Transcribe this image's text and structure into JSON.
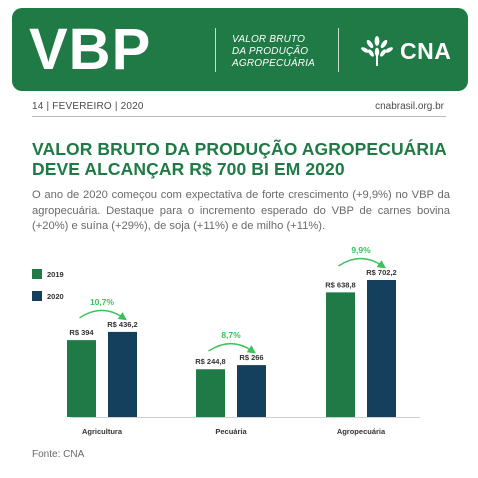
{
  "header": {
    "logo_text": "VBP",
    "subtitle_lines": [
      "VALOR BRUTO",
      "DA PRODUÇÃO",
      "AGROPECUÁRIA"
    ],
    "brand": "CNA",
    "brand_icon": "cna-wheat-logo-icon"
  },
  "meta": {
    "date": "14 | FEVEREIRO | 2020",
    "site": "cnabrasil.org.br"
  },
  "headline": {
    "line1": "VALOR BRUTO DA PRODUÇÃO AGROPECUÁRIA",
    "line2": "DEVE ALCANÇAR R$ 700 BI EM 2020"
  },
  "intro": "O ano de 2020 começou com expectativa de forte crescimento (+9,9%) no VBP da agropecuária. Destaque para o incremento esperado do VBP de carnes bovina (+20%) e suína (+29%), de soja (+11%) e de milho (+11%).",
  "colors": {
    "brand_green": "#1f7a45",
    "series_2019": "#1f7a45",
    "series_2020": "#14405e",
    "growth_label": "#3cc05a"
  },
  "chart_data": {
    "type": "bar",
    "categories": [
      "Agricultura",
      "Pecuária",
      "Agropecuária"
    ],
    "series": [
      {
        "name": "2019",
        "values": [
          394,
          244.8,
          638.8
        ],
        "labels": [
          "R$ 394",
          "R$ 244,8",
          "R$ 638,8"
        ]
      },
      {
        "name": "2020",
        "values": [
          436.2,
          266,
          702.2
        ],
        "labels": [
          "R$ 436,2",
          "R$ 266",
          "R$ 702,2"
        ]
      }
    ],
    "growth": [
      "10,7%",
      "8,7%",
      "9,9%"
    ],
    "title": "",
    "xlabel": "",
    "ylabel": "",
    "ylim": [
      0,
      702.2
    ],
    "grid": false,
    "legend_position": "top-left"
  },
  "source": "Fonte: CNA"
}
